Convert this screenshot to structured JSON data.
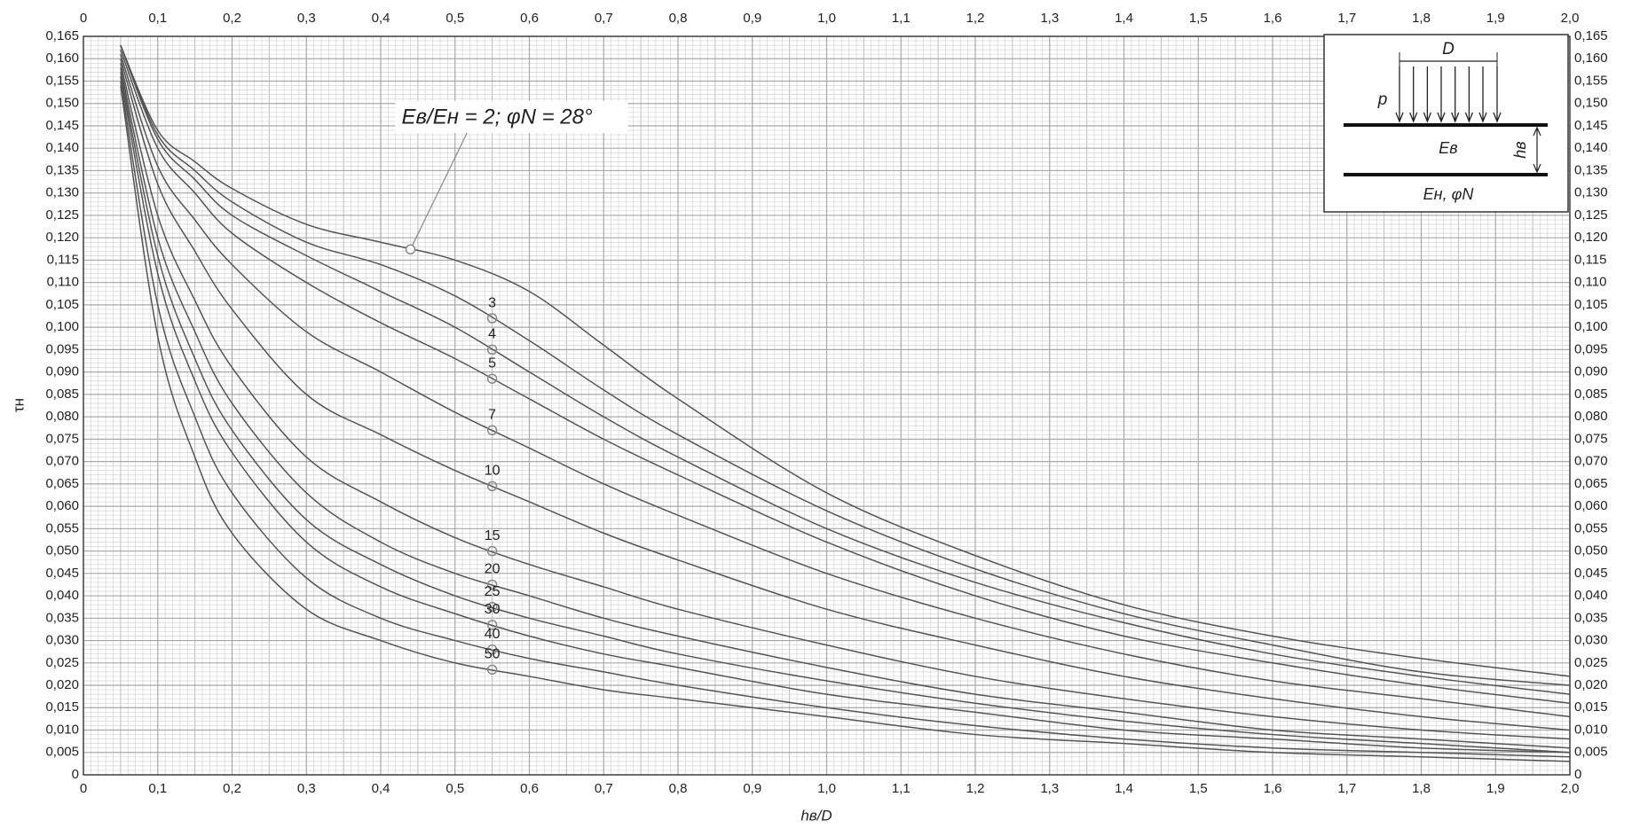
{
  "chart_data": {
    "type": "line",
    "xlabel": "hв/D",
    "ylabel": "τн",
    "annotation": "Eв/Eн = 2; φN = 28°",
    "annotation_x": 0.44,
    "label_x": 0.55,
    "grid": true,
    "color": "#555555",
    "x": [
      0.05,
      0.1,
      0.15,
      0.2,
      0.3,
      0.4,
      0.5,
      0.6,
      0.7,
      0.8,
      1.0,
      1.2,
      1.4,
      1.6,
      1.8,
      2.0
    ],
    "series": [
      {
        "values": [
          0.163,
          0.144,
          0.137,
          0.131,
          0.123,
          0.119,
          0.115,
          0.108,
          0.096,
          0.084,
          0.063,
          0.049,
          0.038,
          0.031,
          0.026,
          0.022
        ]
      },
      {
        "name": "3",
        "values": [
          0.163,
          0.143,
          0.135,
          0.128,
          0.119,
          0.114,
          0.107,
          0.097,
          0.086,
          0.076,
          0.059,
          0.046,
          0.036,
          0.029,
          0.023,
          0.02
        ]
      },
      {
        "name": "4",
        "values": [
          0.163,
          0.142,
          0.133,
          0.125,
          0.116,
          0.108,
          0.1,
          0.09,
          0.08,
          0.071,
          0.055,
          0.043,
          0.034,
          0.027,
          0.022,
          0.018
        ]
      },
      {
        "name": "5",
        "values": [
          0.162,
          0.14,
          0.13,
          0.121,
          0.11,
          0.101,
          0.093,
          0.084,
          0.075,
          0.067,
          0.052,
          0.04,
          0.031,
          0.025,
          0.02,
          0.016
        ]
      },
      {
        "name": "7",
        "values": [
          0.161,
          0.136,
          0.124,
          0.114,
          0.099,
          0.09,
          0.081,
          0.073,
          0.065,
          0.058,
          0.045,
          0.035,
          0.027,
          0.021,
          0.017,
          0.013
        ]
      },
      {
        "name": "10",
        "values": [
          0.16,
          0.132,
          0.117,
          0.104,
          0.085,
          0.076,
          0.068,
          0.061,
          0.054,
          0.048,
          0.037,
          0.029,
          0.022,
          0.017,
          0.013,
          0.01
        ]
      },
      {
        "name": "15",
        "values": [
          0.159,
          0.125,
          0.106,
          0.091,
          0.071,
          0.061,
          0.053,
          0.047,
          0.042,
          0.037,
          0.029,
          0.022,
          0.017,
          0.013,
          0.01,
          0.008
        ]
      },
      {
        "name": "20",
        "values": [
          0.158,
          0.12,
          0.099,
          0.083,
          0.063,
          0.052,
          0.045,
          0.04,
          0.035,
          0.031,
          0.024,
          0.018,
          0.014,
          0.01,
          0.008,
          0.006
        ]
      },
      {
        "name": "25",
        "values": [
          0.157,
          0.116,
          0.093,
          0.077,
          0.057,
          0.047,
          0.04,
          0.035,
          0.031,
          0.027,
          0.021,
          0.016,
          0.012,
          0.009,
          0.007,
          0.005
        ]
      },
      {
        "name": "30",
        "values": [
          0.156,
          0.112,
          0.088,
          0.072,
          0.052,
          0.042,
          0.036,
          0.031,
          0.027,
          0.024,
          0.018,
          0.014,
          0.01,
          0.008,
          0.006,
          0.005
        ]
      },
      {
        "name": "40",
        "values": [
          0.155,
          0.105,
          0.08,
          0.063,
          0.044,
          0.035,
          0.03,
          0.026,
          0.023,
          0.02,
          0.015,
          0.011,
          0.008,
          0.006,
          0.005,
          0.004
        ]
      },
      {
        "name": "50",
        "values": [
          0.154,
          0.098,
          0.071,
          0.054,
          0.037,
          0.03,
          0.025,
          0.022,
          0.019,
          0.017,
          0.013,
          0.009,
          0.007,
          0.005,
          0.004,
          0.003
        ]
      }
    ],
    "xlim": [
      0,
      2.0
    ],
    "ylim": [
      0,
      0.165
    ],
    "xticks": [
      0,
      {
        "value": 0.1,
        "label": "0,1"
      },
      {
        "value": 0.2,
        "label": "0,2"
      },
      {
        "value": 0.3,
        "label": "0,3"
      },
      {
        "value": 0.4,
        "label": "0,4"
      },
      {
        "value": 0.5,
        "label": "0,5"
      },
      {
        "value": 0.6,
        "label": "0,6"
      },
      {
        "value": 0.7,
        "label": "0,7"
      },
      {
        "value": 0.8,
        "label": "0,8"
      },
      {
        "value": 0.9,
        "label": "0,9"
      },
      {
        "value": 1.0,
        "label": "1,0"
      },
      {
        "value": 1.1,
        "label": "1,1"
      },
      {
        "value": 1.2,
        "label": "1,2"
      },
      {
        "value": 1.3,
        "label": "1,3"
      },
      {
        "value": 1.4,
        "label": "1,4"
      },
      {
        "value": 1.5,
        "label": "1,5"
      },
      {
        "value": 1.6,
        "label": "1,6"
      },
      {
        "value": 1.7,
        "label": "1,7"
      },
      {
        "value": 1.8,
        "label": "1,8"
      },
      {
        "value": 1.9,
        "label": "1,9"
      },
      {
        "value": 2.0,
        "label": "2,0"
      }
    ],
    "yticks": [
      0,
      {
        "value": 0.005,
        "label": "0,005"
      },
      {
        "value": 0.01,
        "label": "0,010"
      },
      {
        "value": 0.015,
        "label": "0,015"
      },
      {
        "value": 0.02,
        "label": "0,020"
      },
      {
        "value": 0.025,
        "label": "0,025"
      },
      {
        "value": 0.03,
        "label": "0,030"
      },
      {
        "value": 0.035,
        "label": "0,035"
      },
      {
        "value": 0.04,
        "label": "0,040"
      },
      {
        "value": 0.045,
        "label": "0,045"
      },
      {
        "value": 0.05,
        "label": "0,050"
      },
      {
        "value": 0.055,
        "label": "0,055"
      },
      {
        "value": 0.06,
        "label": "0,060"
      },
      {
        "value": 0.065,
        "label": "0,065"
      },
      {
        "value": 0.07,
        "label": "0,070"
      },
      {
        "value": 0.075,
        "label": "0,075"
      },
      {
        "value": 0.08,
        "label": "0,080"
      },
      {
        "value": 0.085,
        "label": "0,085"
      },
      {
        "value": 0.09,
        "label": "0,090"
      },
      {
        "value": 0.095,
        "label": "0,095"
      },
      {
        "value": 0.1,
        "label": "0,100"
      },
      {
        "value": 0.105,
        "label": "0,105"
      },
      {
        "value": 0.11,
        "label": "0,110"
      },
      {
        "value": 0.115,
        "label": "0,115"
      },
      {
        "value": 0.12,
        "label": "0,120"
      },
      {
        "value": 0.125,
        "label": "0,125"
      },
      {
        "value": 0.13,
        "label": "0,130"
      },
      {
        "value": 0.135,
        "label": "0,135"
      },
      {
        "value": 0.14,
        "label": "0,140"
      },
      {
        "value": 0.145,
        "label": "0,145"
      },
      {
        "value": 0.15,
        "label": "0,150"
      },
      {
        "value": 0.155,
        "label": "0,155"
      },
      {
        "value": 0.16,
        "label": "0,160"
      },
      {
        "value": 0.165,
        "label": "0,165"
      }
    ]
  },
  "inset": {
    "d": "D",
    "p": "p",
    "upper": "Eв",
    "h": "hв",
    "lower": "Eн, φN"
  }
}
